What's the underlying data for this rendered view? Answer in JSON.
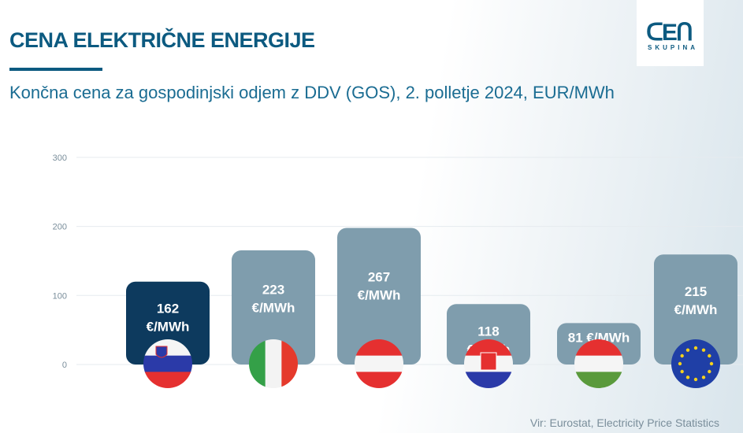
{
  "header": {
    "title": "CENA ELEKTRIČNE ENERGIJE",
    "subtitle": "Končna cena za gospodinjski odjem z DDV (GOS), 2. polletje 2024, EUR/MWh"
  },
  "logo": {
    "mark": "cen",
    "sub": "SKUPINA"
  },
  "source": "Vir: Eurostat, Electricity Price Statistics",
  "colors": {
    "highlight": "#0d3a5e",
    "bar": "#7f9dad",
    "title": "#0c5a80"
  },
  "chart_data": {
    "type": "bar",
    "categories": [
      "Slovenia",
      "Italy",
      "Austria",
      "Croatia",
      "Hungary",
      "EU"
    ],
    "category_icons": [
      "flag-slovenia",
      "flag-italy",
      "flag-austria",
      "flag-croatia",
      "flag-hungary",
      "flag-eu"
    ],
    "values": [
      162,
      223,
      267,
      118,
      81,
      215
    ],
    "data_labels": [
      [
        "162",
        "€/MWh"
      ],
      [
        "223",
        "€/MWh"
      ],
      [
        "267",
        "€/MWh"
      ],
      [
        "118",
        "€/MWh"
      ],
      [
        "81 €/MWh"
      ],
      [
        "215",
        "€/MWh"
      ]
    ],
    "highlighted": "Slovenia",
    "yticks": [
      "0",
      "100",
      "200",
      "300"
    ],
    "ylim": [
      0,
      300
    ],
    "grid": true
  }
}
